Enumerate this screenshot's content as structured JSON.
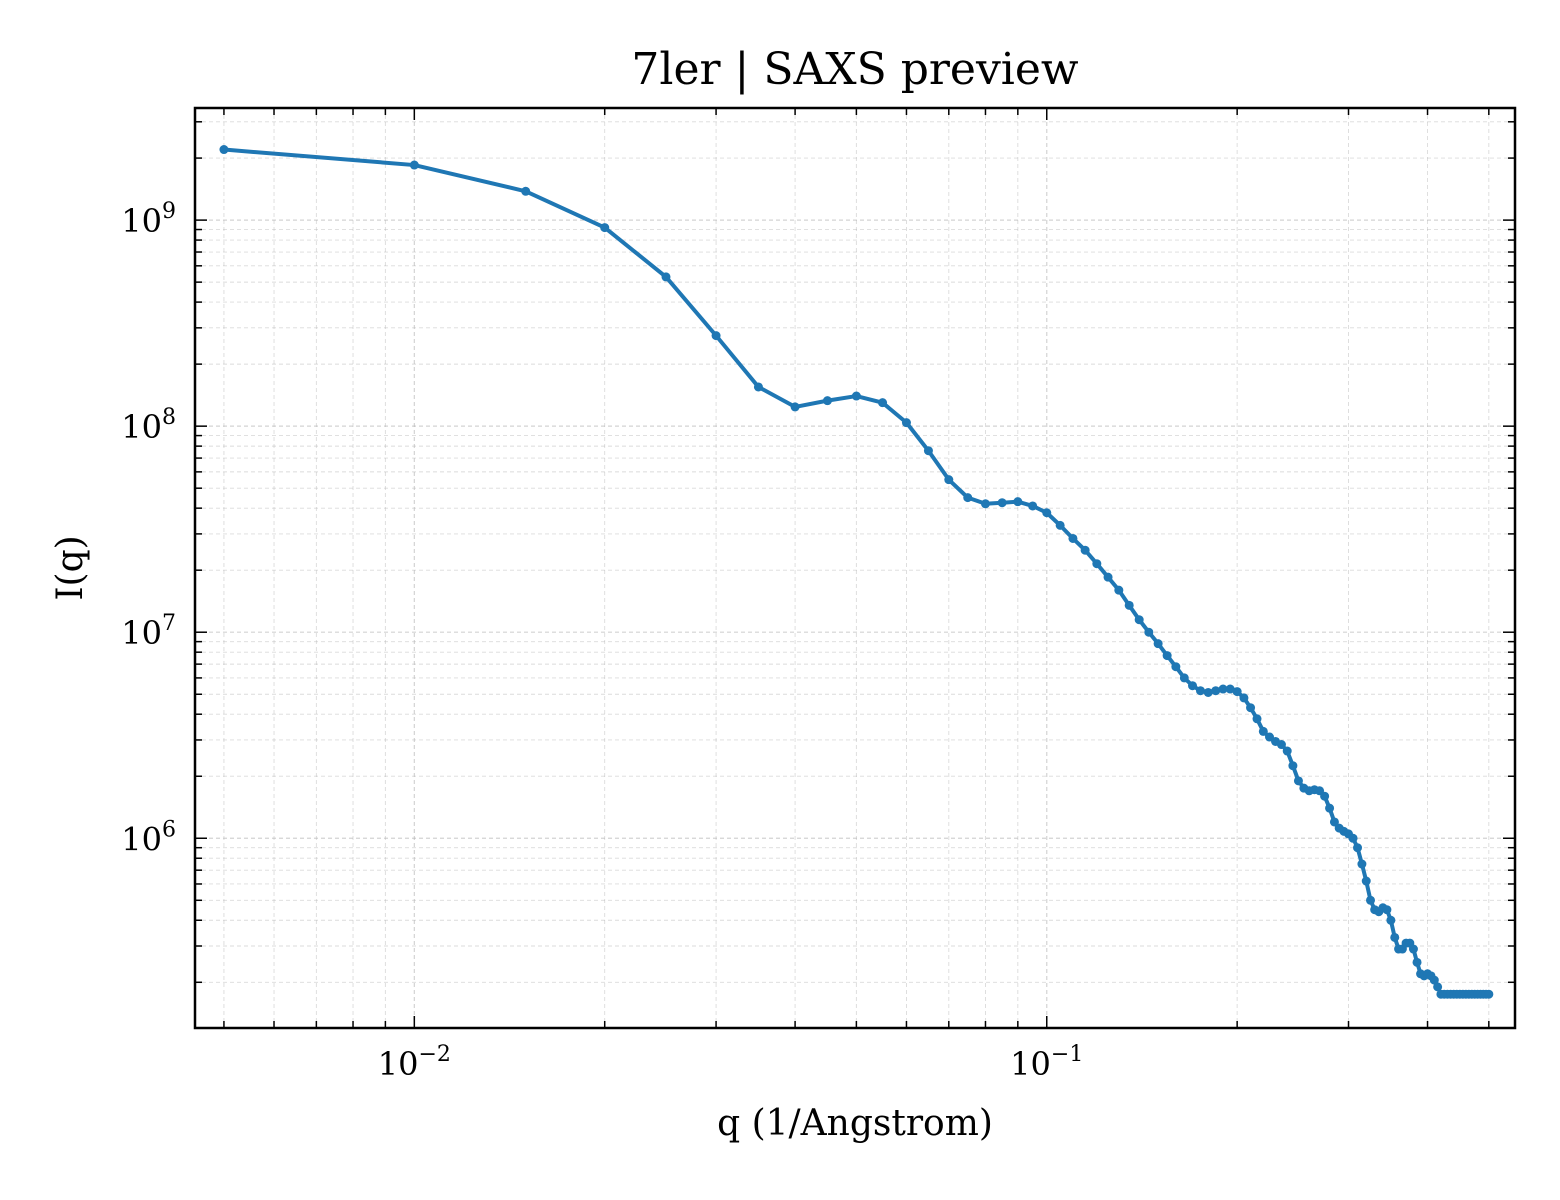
{
  "chart_data": {
    "type": "line",
    "title": "7ler | SAXS preview",
    "xlabel": "q (1/Angstrom)",
    "ylabel": "I(q)",
    "xscale": "log",
    "yscale": "log",
    "xlim": [
      0.0045,
      0.55
    ],
    "ylim": [
      120000.0,
      3500000000.0
    ],
    "grid": true,
    "colors": {
      "line": "#1f77b4"
    },
    "x_ticks": [
      {
        "value": 0.01,
        "base": "10",
        "exp": "−2"
      },
      {
        "value": 0.1,
        "base": "10",
        "exp": "−1"
      }
    ],
    "y_ticks": [
      {
        "value": 1000000,
        "base": "10",
        "exp": "6"
      },
      {
        "value": 10000000,
        "base": "10",
        "exp": "7"
      },
      {
        "value": 100000000,
        "base": "10",
        "exp": "8"
      },
      {
        "value": 1000000000,
        "base": "10",
        "exp": "9"
      }
    ],
    "series": [
      {
        "x": [
          0.005,
          0.01,
          0.015,
          0.02,
          0.025,
          0.03,
          0.035,
          0.04,
          0.045,
          0.05,
          0.055,
          0.06,
          0.065,
          0.07,
          0.075,
          0.08,
          0.085,
          0.09,
          0.095,
          0.1,
          0.105,
          0.11,
          0.115,
          0.12,
          0.125,
          0.13,
          0.135,
          0.14,
          0.145,
          0.15,
          0.155,
          0.16,
          0.165,
          0.17,
          0.175,
          0.18,
          0.185,
          0.19,
          0.195,
          0.2,
          0.205,
          0.21,
          0.215,
          0.22,
          0.225,
          0.23,
          0.235,
          0.24,
          0.245,
          0.25,
          0.255,
          0.26,
          0.265,
          0.27,
          0.275,
          0.28,
          0.285,
          0.29,
          0.295,
          0.3,
          0.305,
          0.31,
          0.315,
          0.32,
          0.325,
          0.33,
          0.335,
          0.34,
          0.345,
          0.35,
          0.355,
          0.36,
          0.365,
          0.37,
          0.375,
          0.38,
          0.385,
          0.39,
          0.395,
          0.4,
          0.405,
          0.41,
          0.415,
          0.42,
          0.425,
          0.43,
          0.435,
          0.44,
          0.445,
          0.45,
          0.455,
          0.46,
          0.465,
          0.47,
          0.475,
          0.48,
          0.485,
          0.49,
          0.495,
          0.5
        ],
        "y": [
          2200000000,
          1850000000,
          1380000000,
          920000000,
          530000000,
          275000000,
          155000000,
          124000000,
          133000000,
          140000000,
          130000000,
          104000000,
          76000000,
          55000000,
          45000000,
          42000000,
          42500000,
          43000000,
          41000000,
          38000000,
          33000000,
          28500000,
          25000000,
          21500000,
          18500000,
          16000000,
          13500000,
          11500000,
          10000000,
          8800000,
          7700000,
          6800000,
          6000000,
          5500000,
          5200000,
          5100000,
          5200000,
          5300000,
          5300000,
          5150000,
          4800000,
          4300000,
          3800000,
          3300000,
          3100000,
          2950000,
          2850000,
          2650000,
          2250000,
          1900000,
          1750000,
          1700000,
          1720000,
          1700000,
          1600000,
          1400000,
          1200000,
          1120000,
          1080000,
          1050000,
          1000000,
          900000,
          750000,
          620000,
          500000,
          450000,
          440000,
          460000,
          450000,
          400000,
          330000,
          290000,
          290000,
          310000,
          310000,
          290000,
          250000,
          220000,
          215000,
          220000,
          215000,
          205000,
          190000,
          175000,
          175000,
          175000,
          175000,
          175000,
          175000,
          175000,
          175000,
          175000,
          175000,
          175000,
          175000,
          175000,
          175000,
          175000,
          175000,
          175000
        ]
      }
    ]
  }
}
